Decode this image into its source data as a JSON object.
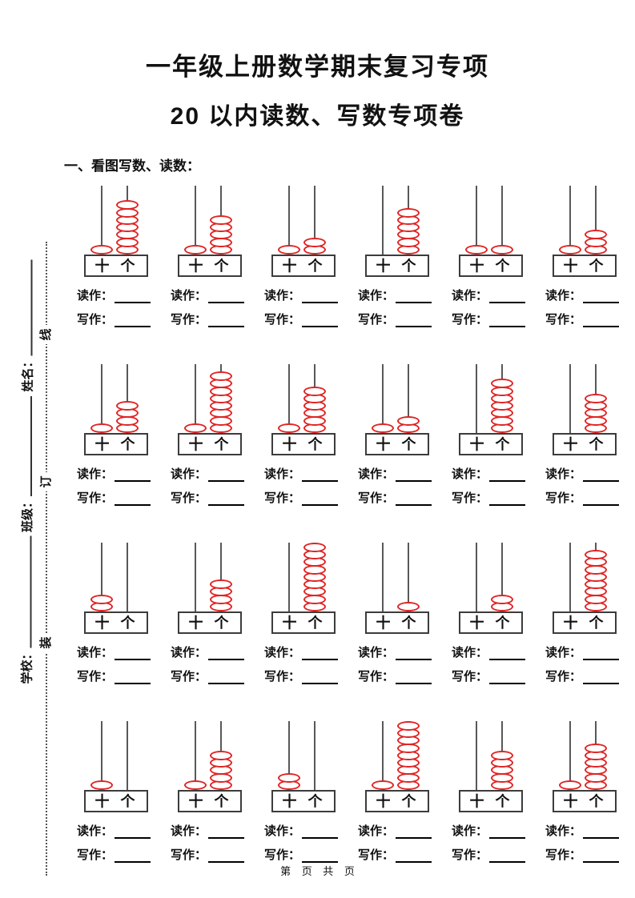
{
  "page": {
    "title_line1": "一年级上册数学期末复习专项",
    "title_line2": "20 以内读数、写数专项卷",
    "section_heading": "一、看图写数、读数：",
    "footer": "第 页 共 页"
  },
  "margin": {
    "name_label": "姓名：",
    "class_label": "班级：",
    "school_label": "学校：",
    "binding_line_chars": [
      "线",
      "订",
      "装"
    ]
  },
  "worksheet": {
    "read_as_label": "读作：",
    "write_as_label": "写作：",
    "abacus": {
      "tens_label": "十",
      "ones_label": "个",
      "bead_color": "#e02424",
      "rod_color": "#585858",
      "rows": [
        [
          {
            "tens": 1,
            "ones": 7,
            "value": 17
          },
          {
            "tens": 1,
            "ones": 5,
            "value": 15
          },
          {
            "tens": 1,
            "ones": 2,
            "value": 12
          },
          {
            "tens": 0,
            "ones": 6,
            "value": 6
          },
          {
            "tens": 1,
            "ones": 1,
            "value": 11
          },
          {
            "tens": 1,
            "ones": 3,
            "value": 13
          }
        ],
        [
          {
            "tens": 1,
            "ones": 4,
            "value": 14
          },
          {
            "tens": 1,
            "ones": 8,
            "value": 18
          },
          {
            "tens": 1,
            "ones": 6,
            "value": 16
          },
          {
            "tens": 1,
            "ones": 2,
            "value": 12
          },
          {
            "tens": 0,
            "ones": 7,
            "value": 7
          },
          {
            "tens": 0,
            "ones": 5,
            "value": 5
          }
        ],
        [
          {
            "tens": 2,
            "ones": 0,
            "value": 20
          },
          {
            "tens": 0,
            "ones": 4,
            "value": 4
          },
          {
            "tens": 0,
            "ones": 9,
            "value": 9
          },
          {
            "tens": 0,
            "ones": 1,
            "value": 1
          },
          {
            "tens": 0,
            "ones": 2,
            "value": 2
          },
          {
            "tens": 0,
            "ones": 8,
            "value": 8
          }
        ],
        [
          {
            "tens": 1,
            "ones": 0,
            "value": 10
          },
          {
            "tens": 1,
            "ones": 5,
            "value": 15
          },
          {
            "tens": 2,
            "ones": 0,
            "value": 20
          },
          {
            "tens": 1,
            "ones": 9,
            "value": 19
          },
          {
            "tens": 0,
            "ones": 5,
            "value": 5
          },
          {
            "tens": 1,
            "ones": 6,
            "value": 16
          }
        ]
      ]
    }
  }
}
